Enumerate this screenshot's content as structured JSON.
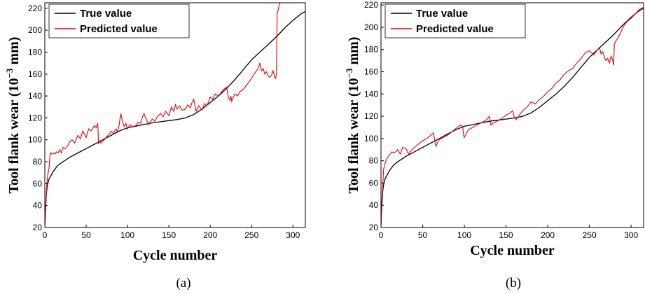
{
  "chart_data": [
    {
      "type": "line",
      "caption": "(a)",
      "xlabel": "Cycle number",
      "ylabel_text": "Tool flank wear (10",
      "ylabel_exp": "−3",
      "ylabel_unit": " mm)",
      "xlim": [
        0,
        315
      ],
      "ylim": [
        20,
        225
      ],
      "xticks": [
        0,
        50,
        100,
        150,
        200,
        250,
        300
      ],
      "yticks": [
        20,
        40,
        60,
        80,
        100,
        120,
        140,
        160,
        180,
        200,
        220
      ],
      "legend_position": "top-left",
      "series": [
        {
          "name": "True value",
          "color": "#000000",
          "x": [
            0,
            1,
            2,
            3,
            5,
            8,
            10,
            15,
            20,
            30,
            40,
            50,
            60,
            70,
            80,
            90,
            100,
            110,
            120,
            130,
            140,
            150,
            160,
            170,
            180,
            190,
            200,
            210,
            220,
            230,
            240,
            250,
            260,
            270,
            280,
            290,
            300,
            310,
            315
          ],
          "y": [
            22,
            40,
            52,
            58,
            64,
            68,
            71,
            76,
            79,
            84,
            88,
            92,
            96,
            100,
            104,
            108,
            111,
            112.5,
            114,
            115.5,
            116.5,
            117.5,
            118.5,
            120,
            123,
            128,
            134,
            140,
            147,
            155,
            164,
            173,
            180,
            187,
            194,
            202,
            209,
            215,
            217
          ]
        },
        {
          "name": "Predicted value",
          "color": "#e60000",
          "x": [
            0,
            1,
            2,
            3,
            4,
            5,
            6,
            7,
            8,
            10,
            12,
            14,
            16,
            18,
            20,
            22,
            25,
            28,
            30,
            33,
            36,
            40,
            43,
            46,
            50,
            53,
            56,
            60,
            62,
            64,
            65,
            66,
            68,
            70,
            72,
            75,
            78,
            80,
            83,
            86,
            88,
            90,
            91,
            92,
            94,
            96,
            98,
            100,
            103,
            106,
            110,
            113,
            116,
            118,
            120,
            123,
            126,
            128,
            130,
            133,
            136,
            140,
            143,
            146,
            150,
            153,
            156,
            158,
            160,
            163,
            166,
            170,
            173,
            176,
            178,
            180,
            183,
            186,
            190,
            193,
            196,
            200,
            203,
            206,
            210,
            213,
            216,
            220,
            222,
            224,
            225,
            226,
            228,
            230,
            233,
            236,
            240,
            243,
            246,
            250,
            253,
            256,
            258,
            260,
            262,
            264,
            266,
            268,
            270,
            272,
            274,
            276,
            278,
            279,
            280,
            281,
            282,
            283,
            285
          ],
          "y": [
            22,
            36,
            55,
            64,
            70,
            73,
            84,
            88,
            87,
            88,
            87,
            89,
            88,
            91,
            88,
            93,
            92,
            95,
            98,
            100,
            97,
            104,
            101,
            108,
            102,
            110,
            108,
            113,
            111,
            115,
            96,
            99,
            97,
            99,
            100,
            103,
            105,
            108,
            106,
            110,
            107,
            114,
            120,
            124,
            116,
            112,
            115,
            110,
            114,
            112,
            113,
            116,
            115,
            121,
            124,
            118,
            114,
            117,
            119,
            117,
            121,
            124,
            121,
            126,
            122,
            130,
            126,
            132,
            128,
            131,
            127,
            128,
            132,
            129,
            134,
            137,
            126,
            131,
            127,
            133,
            131,
            139,
            137,
            142,
            140,
            143,
            146,
            148,
            138,
            136,
            140,
            135,
            139,
            142,
            140,
            144,
            146,
            149,
            152,
            156,
            160,
            163,
            165,
            170,
            163,
            165,
            160,
            162,
            158,
            157,
            159,
            163,
            157,
            156,
            160,
            215,
            218,
            222,
            226
          ]
        }
      ]
    },
    {
      "type": "line",
      "caption": "(b)",
      "xlabel": "Cycle number",
      "ylabel_text": "Tool flank wear (10",
      "ylabel_exp": "−3",
      "ylabel_unit": " mm)",
      "xlim": [
        0,
        315
      ],
      "ylim": [
        20,
        222
      ],
      "xticks": [
        0,
        50,
        100,
        150,
        200,
        250,
        300
      ],
      "yticks": [
        20,
        40,
        60,
        80,
        100,
        120,
        140,
        160,
        180,
        200,
        220
      ],
      "legend_position": "top-left",
      "series": [
        {
          "name": "True value",
          "color": "#000000",
          "x": [
            0,
            1,
            2,
            3,
            5,
            8,
            10,
            15,
            20,
            30,
            40,
            50,
            60,
            70,
            80,
            90,
            100,
            110,
            120,
            130,
            140,
            150,
            160,
            170,
            180,
            190,
            200,
            210,
            220,
            230,
            240,
            250,
            260,
            270,
            280,
            290,
            300,
            310,
            315
          ],
          "y": [
            22,
            40,
            52,
            58,
            64,
            68,
            71,
            76,
            79,
            84,
            88,
            92,
            96,
            100,
            104,
            108,
            111,
            112.5,
            114,
            115.5,
            116.5,
            117.5,
            118.5,
            120,
            123,
            128,
            134,
            140,
            147,
            155,
            164,
            173,
            180,
            187,
            194,
            202,
            209,
            215,
            217
          ]
        },
        {
          "name": "Predicted value",
          "color": "#e60000",
          "x": [
            0,
            1,
            2,
            3,
            5,
            7,
            10,
            13,
            16,
            20,
            23,
            26,
            30,
            33,
            36,
            40,
            45,
            50,
            55,
            60,
            63,
            65,
            66,
            68,
            70,
            75,
            80,
            85,
            90,
            95,
            98,
            99,
            100,
            102,
            105,
            110,
            115,
            120,
            125,
            128,
            130,
            132,
            135,
            140,
            145,
            150,
            155,
            158,
            160,
            162,
            165,
            170,
            175,
            180,
            185,
            190,
            195,
            200,
            205,
            210,
            215,
            220,
            225,
            230,
            235,
            240,
            245,
            250,
            255,
            258,
            260,
            262,
            264,
            266,
            268,
            270,
            272,
            274,
            276,
            278,
            279,
            280,
            282,
            284,
            286,
            288,
            290,
            295,
            300,
            305,
            310,
            315
          ],
          "y": [
            22,
            45,
            55,
            72,
            78,
            82,
            85,
            88,
            87,
            90,
            86,
            92,
            91,
            86,
            89,
            92,
            95,
            98,
            100,
            103,
            105,
            96,
            93,
            97,
            99,
            101,
            103,
            106,
            109,
            112,
            111,
            103,
            101,
            104,
            108,
            110,
            112,
            114,
            116,
            118,
            120,
            112,
            114,
            116,
            118,
            121,
            123,
            125,
            119,
            117,
            120,
            125,
            128,
            133,
            131,
            135,
            138,
            142,
            145,
            150,
            153,
            158,
            161,
            163,
            168,
            172,
            177,
            179,
            175,
            178,
            180,
            182,
            176,
            178,
            173,
            170,
            172,
            168,
            174,
            170,
            166,
            185,
            188,
            190,
            193,
            196,
            200,
            205,
            208,
            212,
            216,
            218
          ]
        }
      ]
    }
  ]
}
